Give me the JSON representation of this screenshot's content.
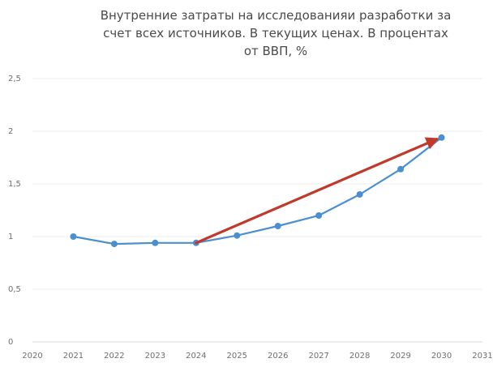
{
  "chart_data": {
    "type": "line",
    "title_lines": [
      "Внутренние затраты на исследованияи разработки за",
      "счет всех источников. В текущих ценах. В процентах",
      "от ВВП, %"
    ],
    "xlabel": "",
    "ylabel": "",
    "x_ticks": [
      "2020",
      "2021",
      "2022",
      "2023",
      "2024",
      "2025",
      "2026",
      "2027",
      "2028",
      "2029",
      "2030",
      "2031"
    ],
    "y_ticks": [
      "0",
      "0,5",
      "1",
      "1,5",
      "2",
      "2,5"
    ],
    "xlim": [
      2020,
      2031
    ],
    "ylim": [
      0,
      2.5
    ],
    "grid": true,
    "series": [
      {
        "x": [
          2021,
          2022,
          2023,
          2024,
          2025,
          2026,
          2027,
          2028,
          2029,
          2030
        ],
        "values": [
          1.0,
          0.93,
          0.94,
          0.94,
          1.01,
          1.1,
          1.2,
          1.4,
          1.64,
          1.94
        ],
        "color": "#4a8fcf"
      }
    ],
    "annotations": [
      {
        "type": "arrow",
        "from": [
          2024,
          0.94
        ],
        "to": [
          2030,
          1.94
        ],
        "color": "#c0392b"
      }
    ]
  }
}
